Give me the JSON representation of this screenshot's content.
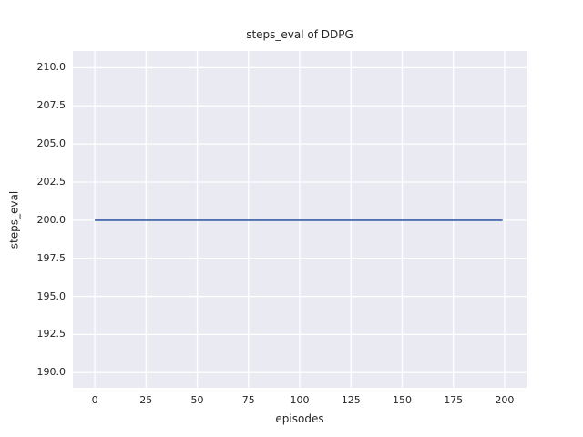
{
  "chart_data": {
    "type": "line",
    "title": "steps_eval of DDPG",
    "xlabel": "episodes",
    "ylabel": "steps_eval",
    "xlim": [
      -10.7,
      210.7
    ],
    "ylim": [
      189.0,
      211.1
    ],
    "xtick_values": [
      0,
      25,
      50,
      75,
      100,
      125,
      150,
      175,
      200
    ],
    "xtick_labels": [
      "0",
      "25",
      "50",
      "75",
      "100",
      "125",
      "150",
      "175",
      "200"
    ],
    "ytick_values": [
      190.0,
      192.5,
      195.0,
      197.5,
      200.0,
      202.5,
      205.0,
      207.5,
      210.0
    ],
    "ytick_labels": [
      "190.0",
      "192.5",
      "195.0",
      "197.5",
      "200.0",
      "202.5",
      "205.0",
      "207.5",
      "210.0"
    ],
    "grid": true,
    "legend": "none",
    "colors": {
      "plot_background": "#eaeaf2",
      "figure_background": "#ffffff",
      "gridline": "#ffffff",
      "text": "#262626",
      "line": "#4c72b0"
    },
    "series": [
      {
        "name": "DDPG steps_eval",
        "x": [
          0,
          199
        ],
        "y": [
          200.0,
          200.0
        ],
        "color": "#4c72b0",
        "note": "constant value 200 across all episodes"
      }
    ]
  }
}
